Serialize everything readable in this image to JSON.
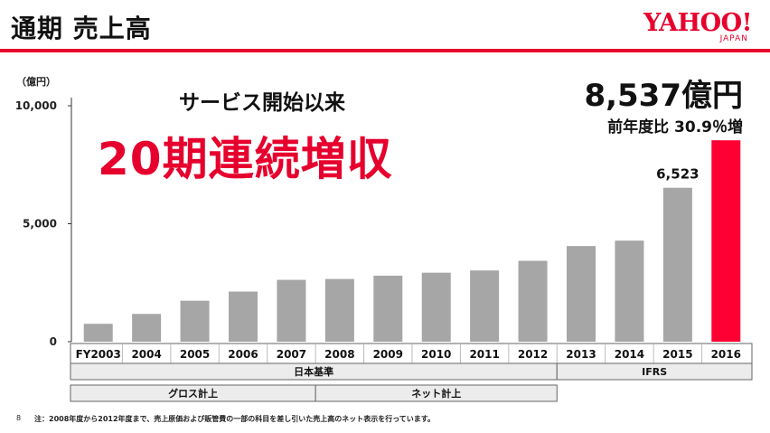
{
  "slide": {
    "title": "通期 売上高",
    "logo_text": "YAHOO!",
    "logo_sub": "JAPAN",
    "headline_small": "サービス開始以来",
    "headline_big": "20期連続増収",
    "callout_value": "8,537億円",
    "callout_growth": "前年度比 30.9％増",
    "page_number": "8",
    "footnote": "注：2008年度から2012年度まで、売上原価および販管費の一部の科目を差し引いた売上高のネット表示を行っています。"
  },
  "chart_data": {
    "type": "bar",
    "title": "",
    "ylabel": "（億円）",
    "xlabel": "",
    "ylim": [
      0,
      10000
    ],
    "yticks": [
      0,
      5000,
      10000
    ],
    "ytick_labels": [
      "0",
      "5,000",
      "10,000"
    ],
    "categories": [
      "FY2003",
      "2004",
      "2005",
      "2006",
      "2007",
      "2008",
      "2009",
      "2010",
      "2011",
      "2012",
      "2013",
      "2014",
      "2015",
      "2016"
    ],
    "values": [
      759,
      1178,
      1737,
      2125,
      2621,
      2658,
      2798,
      2924,
      3020,
      3429,
      4055,
      4284,
      6523,
      8537
    ],
    "data_labels": [
      {
        "index": 12,
        "text": "6,523"
      }
    ],
    "colors": {
      "default": "#a6a6a6",
      "highlight": "#ff0033",
      "axis": "#333333",
      "header_fill": "#ececec"
    },
    "highlight_index": 13,
    "accounting_groups": [
      {
        "label": "日本基準",
        "from": 0,
        "to": 9
      },
      {
        "label": "IFRS",
        "from": 10,
        "to": 13
      }
    ],
    "basis_groups": [
      {
        "label": "グロス計上",
        "from": 0,
        "to": 4
      },
      {
        "label": "ネット計上",
        "from": 5,
        "to": 9
      }
    ],
    "grid": false
  }
}
